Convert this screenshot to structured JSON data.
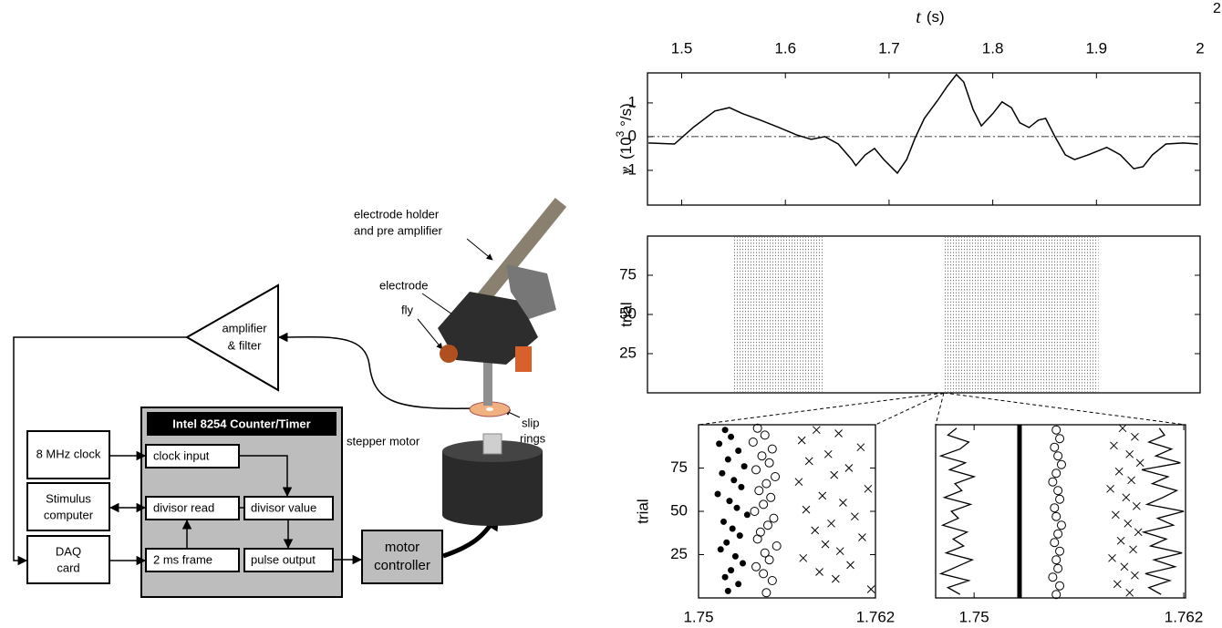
{
  "page_number": "2",
  "diagram": {
    "title": "Intel 8254 Counter/Timer",
    "nodes": [
      {
        "lines": [
          "8 MHz clock"
        ]
      },
      {
        "lines": [
          "Stimulus",
          "computer"
        ]
      },
      {
        "lines": [
          "DAQ",
          "card"
        ]
      },
      {
        "lines": [
          "clock input"
        ]
      },
      {
        "lines": [
          "divisor read"
        ]
      },
      {
        "lines": [
          "divisor value"
        ]
      },
      {
        "lines": [
          "2 ms frame"
        ]
      },
      {
        "lines": [
          "pulse output"
        ]
      },
      {
        "lines": [
          "motor",
          "controller"
        ]
      },
      {
        "lines": [
          "amplifier",
          "& filter"
        ]
      }
    ],
    "callouts": [
      {
        "lines": [
          "electrode holder",
          "and pre amplifier"
        ]
      },
      {
        "lines": [
          "electrode"
        ]
      },
      {
        "lines": [
          "fly"
        ]
      },
      {
        "lines": [
          "stepper motor"
        ]
      },
      {
        "lines": [
          "slip",
          "rings"
        ]
      }
    ]
  },
  "chart_data": [
    {
      "type": "line",
      "xlabel": [
        "t",
        "(s)"
      ],
      "ylabel": [
        "v",
        "(10",
        "3",
        " °/s)"
      ],
      "xlim": [
        1.467,
        2
      ],
      "xticks": [
        1.5,
        1.6,
        1.7,
        1.8,
        1.9,
        2
      ],
      "ylim": [
        -2.03,
        1.89
      ],
      "yticks": [
        -1,
        0,
        1
      ],
      "zero_line": true,
      "color": "#000000",
      "x": [
        1.468,
        1.493,
        1.511,
        1.532,
        1.546,
        1.559,
        1.576,
        1.594,
        1.611,
        1.625,
        1.638,
        1.651,
        1.664,
        1.668,
        1.677,
        1.686,
        1.695,
        1.708,
        1.717,
        1.725,
        1.734,
        1.747,
        1.756,
        1.765,
        1.772,
        1.781,
        1.789,
        1.8,
        1.809,
        1.818,
        1.826,
        1.835,
        1.844,
        1.851,
        1.86,
        1.87,
        1.879,
        1.892,
        1.91,
        1.923,
        1.936,
        1.945,
        1.954,
        1.967,
        1.984,
        1.998
      ],
      "values": [
        -0.19,
        -0.22,
        0.27,
        0.76,
        0.86,
        0.68,
        0.49,
        0.27,
        0.05,
        -0.08,
        0,
        -0.22,
        -0.68,
        -0.86,
        -0.54,
        -0.35,
        -0.68,
        -1.08,
        -0.68,
        -0.05,
        0.54,
        1.08,
        1.49,
        1.84,
        1.62,
        0.81,
        0.32,
        0.68,
        1.03,
        0.86,
        0.41,
        0.27,
        0.49,
        0.54,
        0,
        -0.54,
        -0.68,
        -0.54,
        -0.32,
        -0.54,
        -0.95,
        -0.89,
        -0.54,
        -0.22,
        -0.19,
        -0.22
      ]
    },
    {
      "type": "raster",
      "ylabel": "trial",
      "xlim": [
        1.467,
        2
      ],
      "ylim": [
        0,
        100
      ],
      "yticks": [
        25,
        50,
        75
      ],
      "spans": [
        [
          1.55,
          1.637
        ],
        [
          1.752,
          1.902
        ]
      ]
    },
    {
      "type": "scatter",
      "ylabel": "trial",
      "xlim": [
        1.75,
        1.762
      ],
      "xticks": [
        1.75,
        1.762
      ],
      "ylim": [
        0,
        100
      ],
      "yticks": [
        25,
        50,
        75
      ],
      "series": [
        {
          "marker": "dot",
          "color": "#000000",
          "x": [
            1.7518,
            1.7522,
            1.7514,
            1.7527,
            1.752,
            1.7531,
            1.7516,
            1.7524,
            1.7529,
            1.7513,
            1.7521,
            1.7526,
            1.7533,
            1.7517,
            1.7523,
            1.7528,
            1.7519,
            1.7515,
            1.7525,
            1.753,
            1.7522,
            1.7518,
            1.7527,
            1.752
          ],
          "values": [
            97,
            93,
            89,
            85,
            80,
            76,
            72,
            68,
            64,
            60,
            56,
            52,
            48,
            44,
            40,
            36,
            32,
            28,
            24,
            20,
            16,
            12,
            8,
            4
          ]
        },
        {
          "marker": "circle",
          "color": "#000000",
          "x": [
            1.754,
            1.7545,
            1.7537,
            1.755,
            1.7543,
            1.7548,
            1.7539,
            1.7552,
            1.7546,
            1.7541,
            1.7549,
            1.7544,
            1.7538,
            1.7551,
            1.7547,
            1.7542,
            1.754,
            1.7553,
            1.7545,
            1.7548,
            1.7539,
            1.7544,
            1.755,
            1.7546
          ],
          "values": [
            98,
            94,
            90,
            86,
            82,
            78,
            74,
            70,
            66,
            62,
            58,
            54,
            50,
            46,
            42,
            38,
            34,
            30,
            26,
            22,
            18,
            14,
            10,
            3
          ]
        },
        {
          "marker": "cross",
          "color": "#000000",
          "x": [
            1.758,
            1.7595,
            1.757,
            1.761,
            1.7588,
            1.7575,
            1.7602,
            1.7592,
            1.7568,
            1.7615,
            1.7584,
            1.7598,
            1.7573,
            1.7606,
            1.759,
            1.7579,
            1.7611,
            1.7586,
            1.7596,
            1.7571,
            1.7603,
            1.7582,
            1.7593,
            1.7617
          ],
          "values": [
            97,
            95,
            91,
            87,
            83,
            79,
            75,
            71,
            67,
            63,
            59,
            55,
            51,
            47,
            43,
            39,
            35,
            31,
            27,
            23,
            19,
            15,
            11,
            5
          ]
        }
      ]
    },
    {
      "type": "scatter",
      "xlim": [
        1.7478,
        1.7621
      ],
      "xticks": [
        1.75,
        1.762
      ],
      "ylim": [
        0,
        100
      ],
      "vline": 1.7526,
      "series": [
        {
          "marker": "line",
          "color": "#000000",
          "x": [
            1.7492,
            1.7485,
            1.7497,
            1.7481,
            1.749,
            1.7499,
            1.7484,
            1.7494,
            1.7488,
            1.7496,
            1.7482,
            1.7491,
            1.7487,
            1.7498,
            1.7483,
            1.7493,
            1.7489,
            1.75,
            1.7486,
            1.7495,
            1.7481,
            1.7492,
            1.7497,
            1.7485,
            1.749
          ],
          "values": [
            2,
            6,
            10,
            14,
            18,
            22,
            26,
            30,
            34,
            38,
            42,
            46,
            50,
            54,
            58,
            62,
            66,
            70,
            74,
            78,
            82,
            86,
            90,
            94,
            98
          ]
        },
        {
          "marker": "circle",
          "color": "#000000",
          "x": [
            1.7547,
            1.7549,
            1.7546,
            1.7548,
            1.755,
            1.7547,
            1.7545,
            1.7548,
            1.7549,
            1.7546,
            1.7547,
            1.755,
            1.7548,
            1.7546,
            1.7549,
            1.7547,
            1.7548,
            1.7545,
            1.7549,
            1.7547
          ],
          "values": [
            97,
            92,
            87,
            82,
            77,
            72,
            67,
            62,
            57,
            52,
            47,
            42,
            37,
            32,
            27,
            22,
            17,
            12,
            7,
            2
          ]
        },
        {
          "marker": "cross",
          "color": "#000000",
          "x": [
            1.7585,
            1.7592,
            1.758,
            1.7589,
            1.7595,
            1.7583,
            1.759,
            1.7578,
            1.7587,
            1.7593,
            1.7581,
            1.7588,
            1.7594,
            1.7584,
            1.7591,
            1.7579,
            1.7586,
            1.7592,
            1.7582,
            1.7589
          ],
          "values": [
            98,
            93,
            88,
            83,
            78,
            73,
            68,
            63,
            58,
            53,
            48,
            43,
            38,
            33,
            28,
            23,
            18,
            13,
            8,
            3
          ]
        },
        {
          "marker": "line",
          "color": "#000000",
          "x": [
            1.7607,
            1.76,
            1.7612,
            1.7598,
            1.7615,
            1.7603,
            1.7619,
            1.7601,
            1.761,
            1.7597,
            1.7614,
            1.7605,
            1.762,
            1.7599,
            1.7608,
            1.7616,
            1.7602,
            1.7611,
            1.7596,
            1.7618,
            1.7604,
            1.7613,
            1.76,
            1.7609,
            1.7606
          ],
          "values": [
            2,
            6,
            10,
            14,
            18,
            22,
            26,
            30,
            34,
            38,
            42,
            46,
            50,
            54,
            58,
            62,
            66,
            70,
            74,
            78,
            82,
            86,
            90,
            94,
            98
          ]
        }
      ]
    }
  ]
}
